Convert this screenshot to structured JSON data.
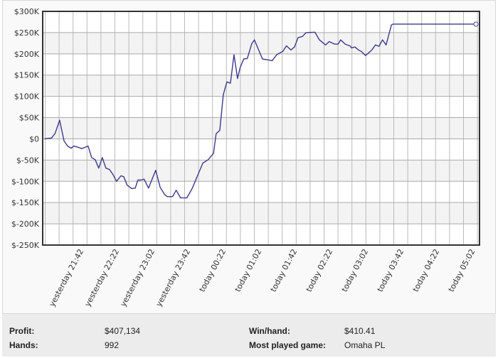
{
  "chart_data": {
    "type": "line",
    "title": "",
    "xlabel": "",
    "ylabel": "",
    "x_units": "minutes since start of session window",
    "xlim": [
      0,
      491
    ],
    "ylim": [
      -250,
      300
    ],
    "y_unit": "K USD",
    "y_ticks": [
      300,
      250,
      200,
      150,
      100,
      50,
      0,
      -50,
      -100,
      -150,
      -200,
      -250
    ],
    "y_tick_labels": [
      "$300K",
      "$250K",
      "$200K",
      "$150K",
      "$100K",
      "$50K",
      "$0",
      "$-50K",
      "$-100K",
      "$-150K",
      "$-200K",
      "$-250K"
    ],
    "x_ticks": [
      46,
      86,
      126,
      166,
      206,
      246,
      286,
      326,
      366,
      406,
      446,
      486
    ],
    "x_tick_labels": [
      "yesterday 21:42",
      "yesterday 22:22",
      "yesterday 23:02",
      "yesterday 23:42",
      "today 00:22",
      "today 01:02",
      "today 01:42",
      "today 02:22",
      "today 03:02",
      "today 03:42",
      "today 04:22",
      "today 05:02"
    ],
    "grid": true,
    "line_color": "#3a3a8c",
    "series": [
      {
        "name": "Profit",
        "points": [
          [
            2,
            0
          ],
          [
            10,
            2
          ],
          [
            14,
            13
          ],
          [
            19,
            44
          ],
          [
            24,
            -5
          ],
          [
            28,
            -17
          ],
          [
            32,
            -22
          ],
          [
            35,
            -17
          ],
          [
            40,
            -20
          ],
          [
            44,
            -23
          ],
          [
            51,
            -17
          ],
          [
            55,
            -44
          ],
          [
            59,
            -49
          ],
          [
            63,
            -69
          ],
          [
            67,
            -44
          ],
          [
            71,
            -69
          ],
          [
            75,
            -72
          ],
          [
            79,
            -84
          ],
          [
            83,
            -100
          ],
          [
            88,
            -87
          ],
          [
            91,
            -89
          ],
          [
            95,
            -109
          ],
          [
            100,
            -117
          ],
          [
            104,
            -116
          ],
          [
            107,
            -97
          ],
          [
            110,
            -97
          ],
          [
            114,
            -95
          ],
          [
            119,
            -116
          ],
          [
            127,
            -74
          ],
          [
            132,
            -114
          ],
          [
            137,
            -131
          ],
          [
            140,
            -136
          ],
          [
            146,
            -136
          ],
          [
            150,
            -121
          ],
          [
            155,
            -139
          ],
          [
            162,
            -139
          ],
          [
            168,
            -117
          ],
          [
            174,
            -87
          ],
          [
            180,
            -57
          ],
          [
            186,
            -49
          ],
          [
            192,
            -34
          ],
          [
            195,
            12
          ],
          [
            199,
            20
          ],
          [
            203,
            104
          ],
          [
            207,
            134
          ],
          [
            211,
            131
          ],
          [
            215,
            198
          ],
          [
            219,
            142
          ],
          [
            222,
            168
          ],
          [
            226,
            188
          ],
          [
            230,
            189
          ],
          [
            235,
            224
          ],
          [
            238,
            233
          ],
          [
            247,
            188
          ],
          [
            258,
            184
          ],
          [
            263,
            198
          ],
          [
            270,
            206
          ],
          [
            274,
            219
          ],
          [
            279,
            209
          ],
          [
            283,
            216
          ],
          [
            287,
            238
          ],
          [
            292,
            241
          ],
          [
            296,
            250
          ],
          [
            306,
            251
          ],
          [
            311,
            233
          ],
          [
            318,
            221
          ],
          [
            322,
            229
          ],
          [
            328,
            223
          ],
          [
            332,
            223
          ],
          [
            335,
            233
          ],
          [
            340,
            223
          ],
          [
            346,
            218
          ],
          [
            347,
            214
          ],
          [
            351,
            216
          ],
          [
            355,
            209
          ],
          [
            358,
            206
          ],
          [
            363,
            196
          ],
          [
            370,
            209
          ],
          [
            374,
            221
          ],
          [
            378,
            218
          ],
          [
            382,
            233
          ],
          [
            386,
            221
          ],
          [
            392,
            268
          ],
          [
            394,
            270
          ],
          [
            487,
            270
          ]
        ]
      }
    ]
  },
  "stats": {
    "profit_label": "Profit:",
    "profit_value": "$407,134",
    "hands_label": "Hands:",
    "hands_value": "992",
    "winhand_label": "Win/hand:",
    "winhand_value": "$410.41",
    "game_label": "Most played game:",
    "game_value": "Omaha PL"
  }
}
